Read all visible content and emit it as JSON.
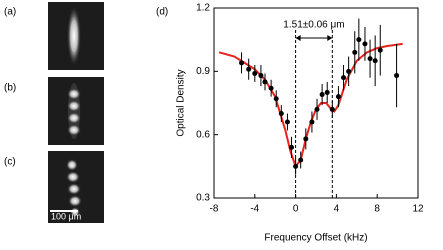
{
  "panels": {
    "a": "(a)",
    "b": "(b)",
    "c": "(c)",
    "d": "(d)",
    "scale_bar": "100 μm"
  },
  "chart_data": {
    "type": "scatter",
    "xlabel": "Frequency Offset (kHz)",
    "ylabel": "Optical Density",
    "annotation": "1.51±0.06 μm",
    "reference_lines_x": [
      0,
      3.6
    ],
    "xlim": [
      -8,
      12
    ],
    "xticks": [
      -8,
      -4,
      0,
      4,
      8,
      12
    ],
    "ylim": [
      0.3,
      1.2
    ],
    "yticks": [
      0.3,
      0.6,
      0.9,
      1.2
    ],
    "series": [
      {
        "color": "#000000",
        "x": [
          -5.3,
          -4.6,
          -4.0,
          -3.4,
          -3.0,
          -2.4,
          -1.9,
          -1.4,
          -0.8,
          -0.4,
          0.0,
          0.5,
          1.0,
          1.6,
          2.1,
          2.6,
          3.1,
          3.6,
          4.2,
          4.7,
          5.2,
          5.8,
          6.2,
          6.8,
          7.3,
          7.8,
          8.3,
          9.9
        ],
        "values": [
          0.94,
          0.91,
          0.89,
          0.88,
          0.85,
          0.82,
          0.77,
          0.7,
          0.66,
          0.54,
          0.45,
          0.48,
          0.58,
          0.66,
          0.72,
          0.79,
          0.8,
          0.72,
          0.78,
          0.87,
          0.9,
          0.99,
          1.05,
          1.03,
          0.96,
          0.95,
          1.0,
          0.88
        ],
        "errors": [
          0.05,
          0.05,
          0.04,
          0.05,
          0.04,
          0.04,
          0.04,
          0.04,
          0.04,
          0.05,
          0.04,
          0.04,
          0.05,
          0.05,
          0.05,
          0.05,
          0.05,
          0.04,
          0.05,
          0.06,
          0.07,
          0.1,
          0.1,
          0.08,
          0.09,
          0.12,
          0.12,
          0.15
        ]
      },
      {
        "color": "#e8221c",
        "x": [
          -7.5,
          -6,
          -5,
          -4,
          -3,
          -2,
          -1,
          -0.5,
          0,
          0.5,
          1,
          1.5,
          2,
          2.5,
          3,
          3.5,
          3.8,
          4.2,
          5,
          6,
          7,
          8,
          9,
          10.5
        ],
        "values": [
          0.99,
          0.97,
          0.94,
          0.91,
          0.86,
          0.78,
          0.62,
          0.52,
          0.45,
          0.48,
          0.58,
          0.66,
          0.72,
          0.75,
          0.75,
          0.72,
          0.71,
          0.74,
          0.86,
          0.95,
          0.99,
          1.01,
          1.02,
          1.03
        ]
      }
    ]
  }
}
